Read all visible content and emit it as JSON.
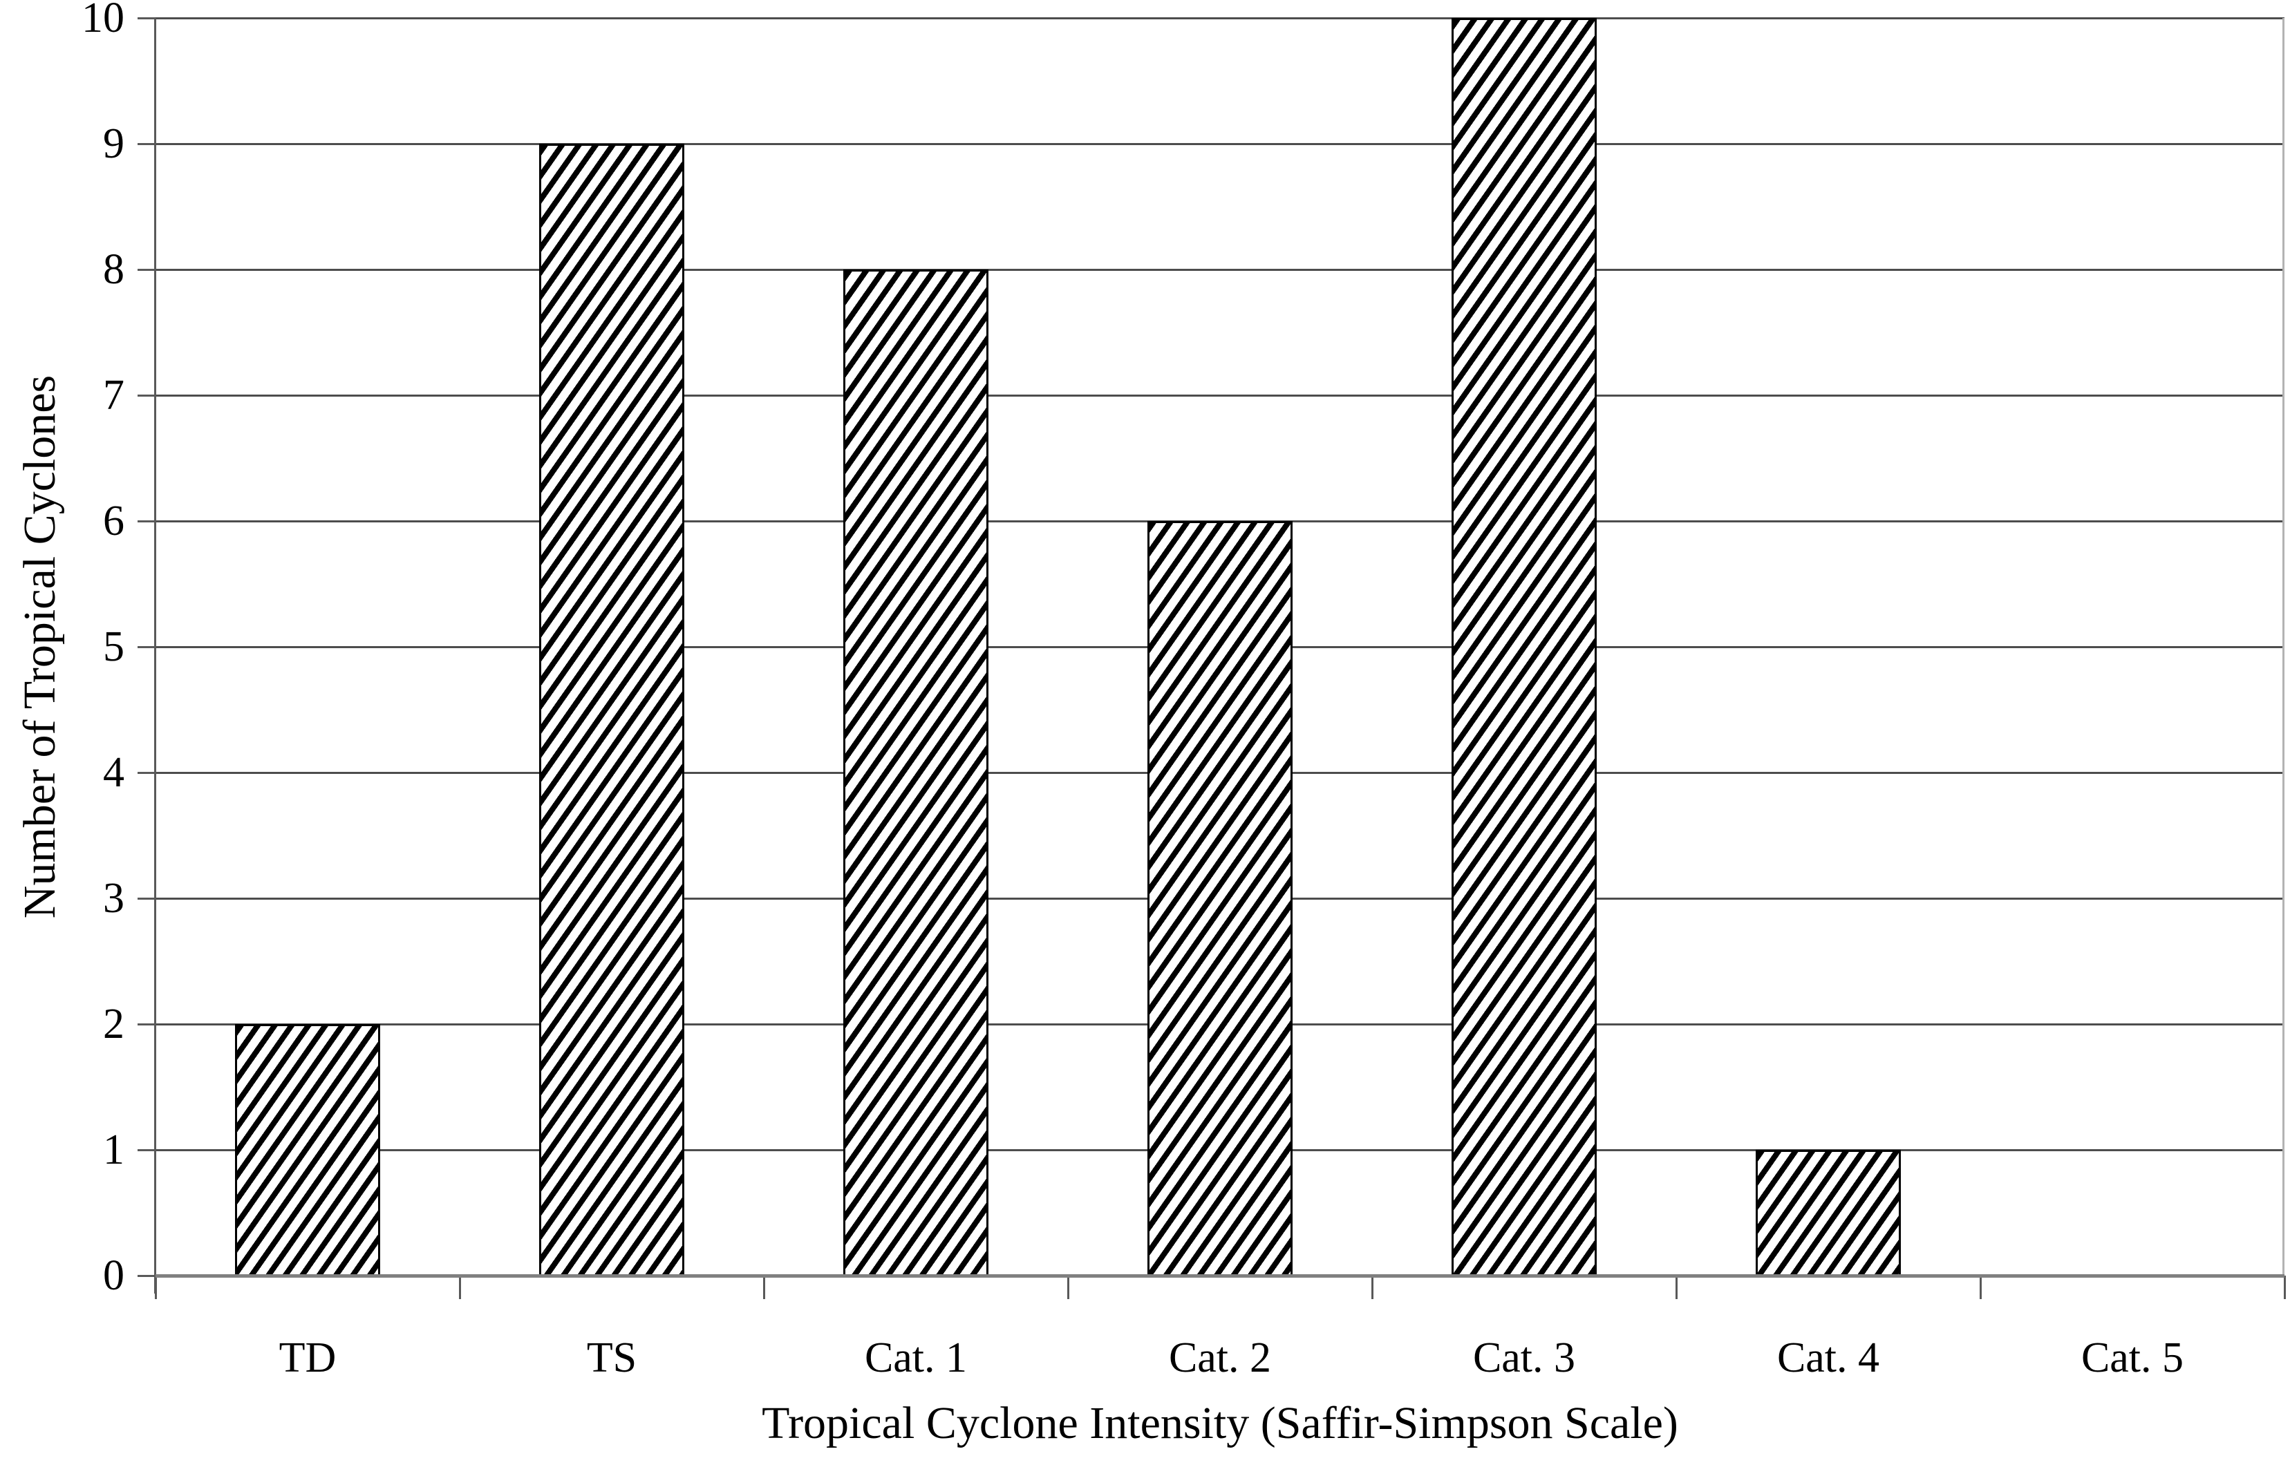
{
  "figure": {
    "background_color": "#ffffff",
    "text_color": "#000000",
    "gridline_color": "#4d4d4d",
    "baseline_color": "#808080",
    "axis_color": "#595959",
    "plot_right_border_color": "#b3b3b3"
  },
  "chart_data": {
    "type": "bar",
    "categories": [
      "TD",
      "TS",
      "Cat. 1",
      "Cat. 2",
      "Cat. 3",
      "Cat. 4",
      "Cat. 5"
    ],
    "values": [
      2,
      9,
      8,
      6,
      10,
      1,
      0
    ],
    "xlabel": "Tropical Cyclone Intensity (Saffir-Simpson Scale)",
    "ylabel": "Number of Tropical Cyclones",
    "ylim": [
      0,
      10
    ],
    "yticks": [
      0,
      1,
      2,
      3,
      4,
      5,
      6,
      7,
      8,
      9,
      10
    ],
    "grid": "horizontal",
    "legend": "none",
    "bar_style": {
      "fill": "diagonal-hatch",
      "hatch_direction": "forward-slash",
      "stripe_color": "#000000",
      "background_color": "#ffffff",
      "border_color": "#000000"
    }
  }
}
